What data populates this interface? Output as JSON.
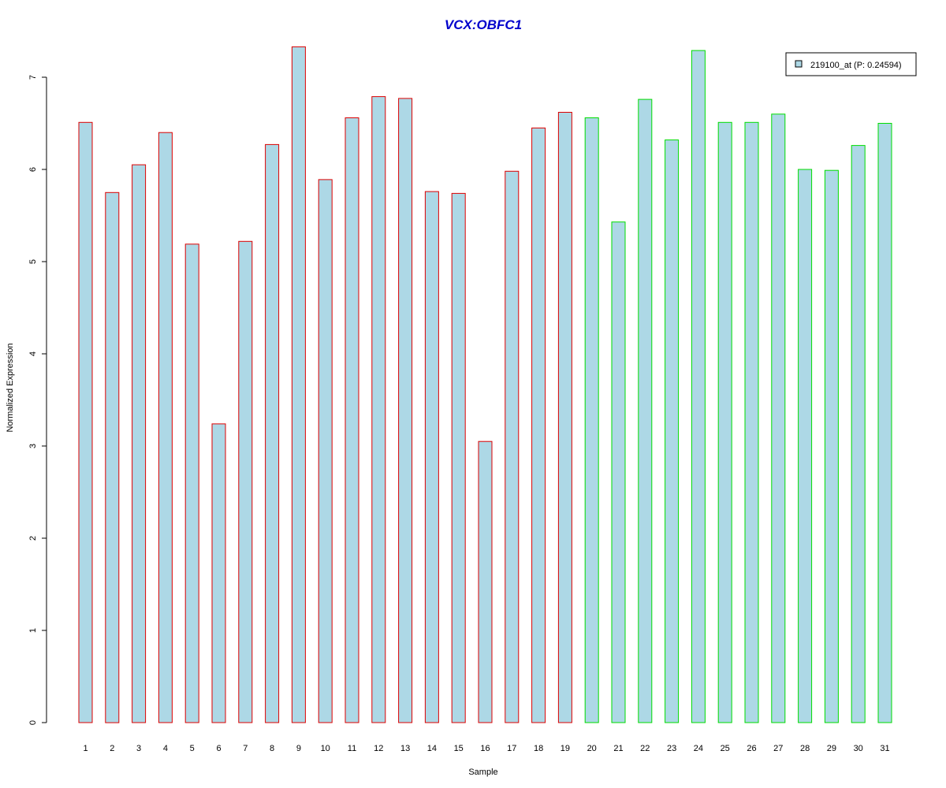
{
  "chart_data": {
    "type": "bar",
    "title": "VCX:OBFC1",
    "xlabel": "Sample",
    "ylabel": "Normalized Expression",
    "ylim": [
      0,
      7.35
    ],
    "y_ticks": [
      0,
      1,
      2,
      3,
      4,
      5,
      6,
      7
    ],
    "grid": false,
    "legend_position": "top-right",
    "categories": [
      "1",
      "2",
      "3",
      "4",
      "5",
      "6",
      "7",
      "8",
      "9",
      "10",
      "11",
      "12",
      "13",
      "14",
      "15",
      "16",
      "17",
      "18",
      "19",
      "20",
      "21",
      "22",
      "23",
      "24",
      "25",
      "26",
      "27",
      "28",
      "29",
      "30",
      "31"
    ],
    "series": [
      {
        "name": "219100_at (P: 0.24594)",
        "values": [
          6.51,
          5.75,
          6.05,
          6.4,
          5.19,
          3.24,
          5.22,
          6.27,
          7.33,
          5.89,
          6.56,
          6.79,
          6.77,
          5.76,
          5.74,
          3.05,
          5.98,
          6.45,
          6.62,
          6.56,
          5.43,
          6.76,
          6.32,
          7.29,
          6.51,
          6.51,
          6.6,
          6.0,
          5.99,
          6.26,
          6.5
        ]
      }
    ],
    "groups": [
      {
        "from": 1,
        "to": 19,
        "border_color": "#dd0000"
      },
      {
        "from": 20,
        "to": 31,
        "border_color": "#00dd00"
      }
    ],
    "bar_fill": "#add8e6",
    "title_color": "#0000cc"
  }
}
